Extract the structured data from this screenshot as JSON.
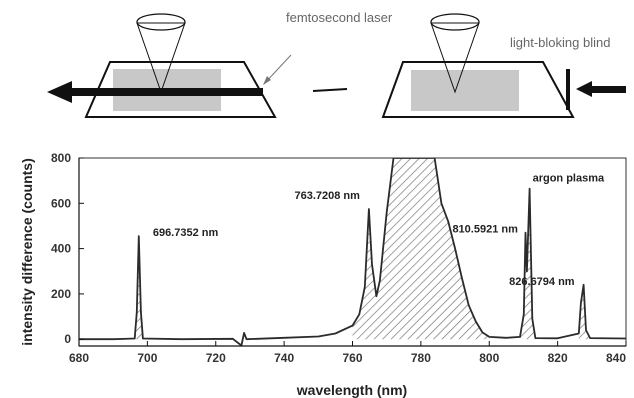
{
  "diagram": {
    "laser_label": "femtosecond laser",
    "blind_label": "light-bloking blind"
  },
  "chart_data": {
    "type": "line",
    "xlabel": "wavelength (nm)",
    "ylabel": "intensity difference (counts)",
    "xlim": [
      680,
      840
    ],
    "ylim": [
      -30,
      800
    ],
    "xticks": [
      680,
      700,
      720,
      740,
      760,
      780,
      800,
      820,
      840
    ],
    "yticks": [
      0,
      200,
      400,
      600,
      800
    ],
    "grid": false,
    "annotations": [
      {
        "text": "696.7352 nm",
        "x": 697.5,
        "y": 455
      },
      {
        "text": "763.7208 nm",
        "x": 764.8,
        "y": 575
      },
      {
        "text": "810.5921 nm",
        "x": 811.3,
        "y": 470
      },
      {
        "text": "argon plasma",
        "x": 811.8,
        "y": 665
      },
      {
        "text": "826.6794 nm",
        "x": 827.6,
        "y": 240
      }
    ],
    "series": [
      {
        "points": [
          [
            680,
            0
          ],
          [
            690,
            0
          ],
          [
            696.3,
            3
          ],
          [
            696.9,
            120
          ],
          [
            697.5,
            455
          ],
          [
            698.1,
            120
          ],
          [
            698.7,
            3
          ],
          [
            710,
            0
          ],
          [
            725,
            2
          ],
          [
            727.5,
            -28
          ],
          [
            728.3,
            28
          ],
          [
            729,
            0
          ],
          [
            740,
            6
          ],
          [
            750,
            12
          ],
          [
            755,
            25
          ],
          [
            760,
            60
          ],
          [
            762,
            110
          ],
          [
            763.6,
            230
          ],
          [
            764.8,
            575
          ],
          [
            765.7,
            330
          ],
          [
            767,
            190
          ],
          [
            768,
            260
          ],
          [
            770,
            560
          ],
          [
            772,
            800
          ],
          [
            780,
            800
          ],
          [
            784,
            800
          ],
          [
            786,
            600
          ],
          [
            788,
            520
          ],
          [
            790,
            400
          ],
          [
            792,
            270
          ],
          [
            794,
            150
          ],
          [
            796,
            80
          ],
          [
            798,
            30
          ],
          [
            800,
            10
          ],
          [
            805,
            6
          ],
          [
            809,
            10
          ],
          [
            810.1,
            110
          ],
          [
            810.6,
            470
          ],
          [
            811,
            300
          ],
          [
            811.8,
            665
          ],
          [
            812.6,
            90
          ],
          [
            813.5,
            5
          ],
          [
            820,
            4
          ],
          [
            826.2,
            25
          ],
          [
            826.8,
            160
          ],
          [
            827.6,
            240
          ],
          [
            828.3,
            40
          ],
          [
            829.5,
            5
          ],
          [
            840,
            3
          ]
        ]
      }
    ]
  }
}
